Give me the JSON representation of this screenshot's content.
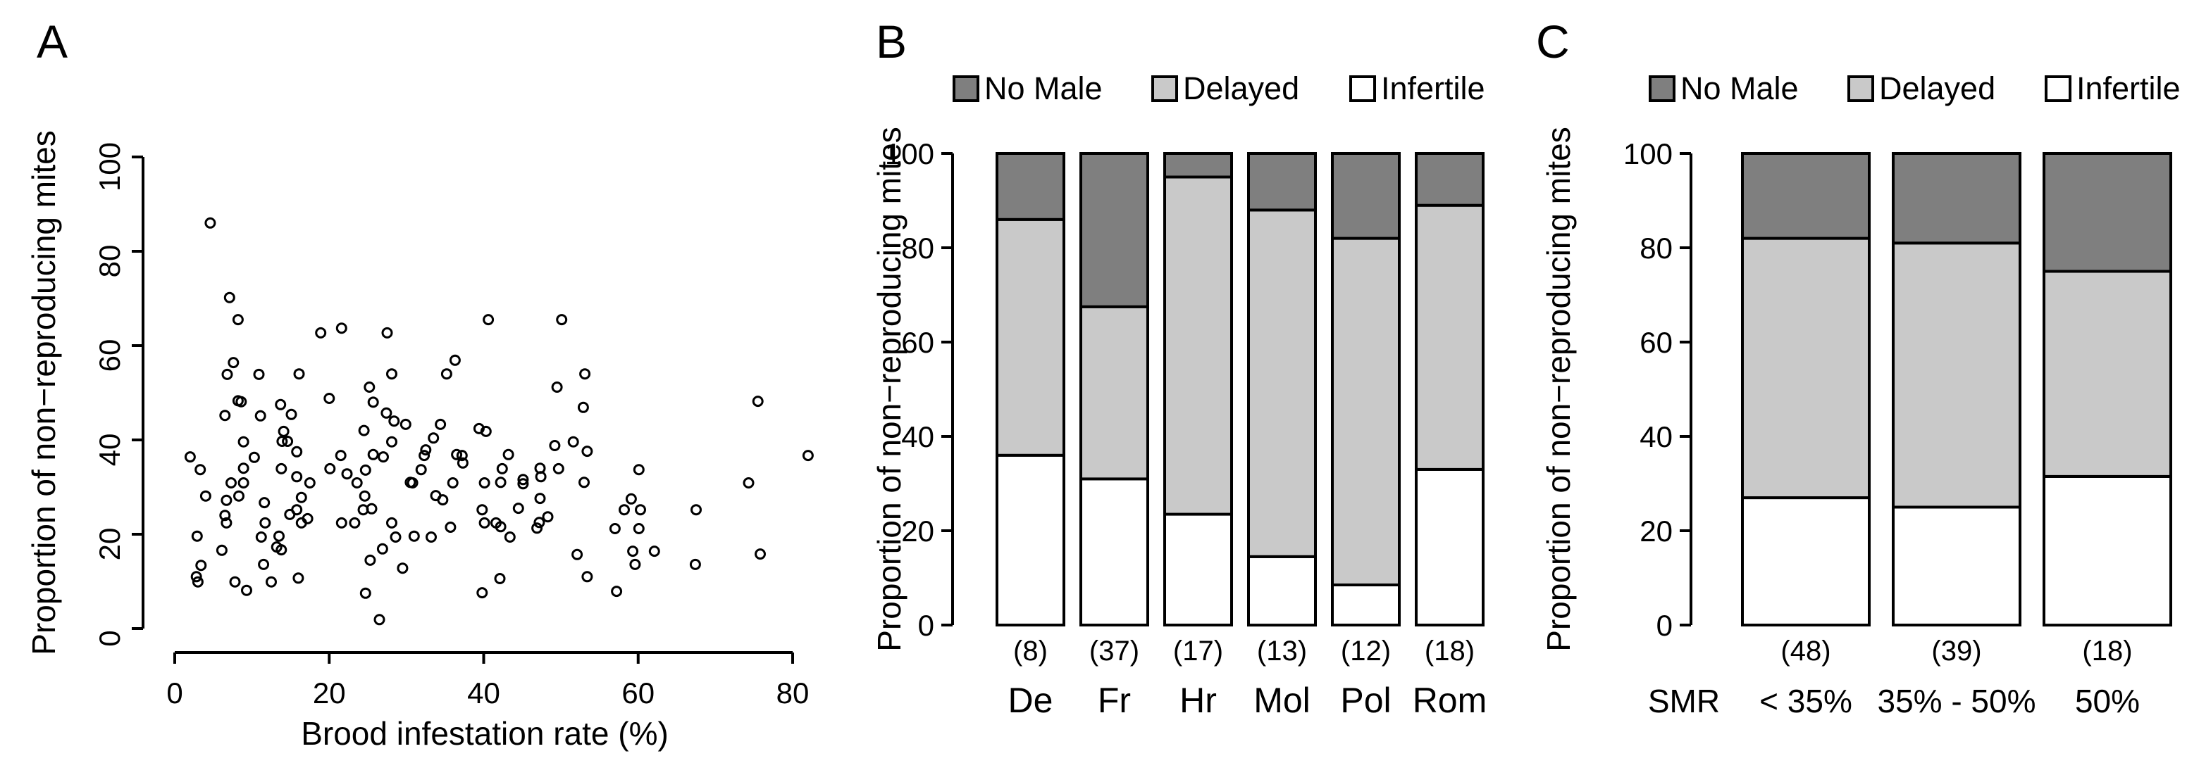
{
  "panels": {
    "a": {
      "letter": "A",
      "y_label": "Proportion of non−reproducing mites",
      "x_label": "Brood infestation rate (%)"
    },
    "b": {
      "letter": "B",
      "y_label": "Proportion of non−reproducing mites"
    },
    "c": {
      "letter": "C",
      "y_label": "Proportion of non−reproducing mites",
      "row_label": "SMR"
    }
  },
  "legend": {
    "items": [
      {
        "label": "No Male",
        "color": "#7f7f7f"
      },
      {
        "label": "Delayed",
        "color": "#c9c9c9"
      },
      {
        "label": "Infertile",
        "color": "#ffffff"
      }
    ]
  },
  "chart_data": [
    {
      "type": "scatter",
      "panel": "A",
      "title": "",
      "xlabel": "Brood infestation rate (%)",
      "ylabel": "Proportion of non−reproducing mites",
      "xlim": [
        0,
        80
      ],
      "ylim": [
        0,
        100
      ],
      "x_ticks": [
        0,
        20,
        40,
        60,
        80
      ],
      "y_ticks": [
        0,
        20,
        40,
        60,
        80,
        100
      ],
      "grid": false,
      "marker": "open-circle",
      "points": [
        [
          4.6,
          86
        ],
        [
          7.1,
          70.2
        ],
        [
          8.2,
          65.5
        ],
        [
          18.9,
          62.7
        ],
        [
          21.6,
          63.7
        ],
        [
          27.5,
          62.7
        ],
        [
          7.6,
          56.4
        ],
        [
          6.8,
          53.9
        ],
        [
          10.9,
          53.9
        ],
        [
          16.1,
          54
        ],
        [
          25.2,
          51.2
        ],
        [
          40.6,
          65.5
        ],
        [
          50.1,
          65.5
        ],
        [
          28.1,
          54
        ],
        [
          36.3,
          56.9
        ],
        [
          35.2,
          54
        ],
        [
          49.5,
          51.2
        ],
        [
          53.1,
          54
        ],
        [
          8.2,
          48.3
        ],
        [
          8.6,
          48.1
        ],
        [
          20,
          48.8
        ],
        [
          25.7,
          48
        ],
        [
          13.7,
          47.5
        ],
        [
          6.5,
          45.2
        ],
        [
          11.1,
          45.1
        ],
        [
          15.1,
          45.4
        ],
        [
          27.4,
          45.7
        ],
        [
          14.1,
          41.8
        ],
        [
          24.5,
          42
        ],
        [
          13.9,
          39.7
        ],
        [
          14.6,
          39.7
        ],
        [
          8.9,
          39.6
        ],
        [
          15.8,
          37.5
        ],
        [
          21.5,
          36.7
        ],
        [
          2,
          36.4
        ],
        [
          10.3,
          36.3
        ],
        [
          25.7,
          36.9
        ],
        [
          27,
          36.4
        ],
        [
          3.3,
          33.7
        ],
        [
          8.9,
          34
        ],
        [
          13.8,
          33.9
        ],
        [
          20.1,
          33.9
        ],
        [
          22.3,
          32.8
        ],
        [
          24.7,
          33.6
        ],
        [
          15.8,
          32.2
        ],
        [
          7.3,
          30.9
        ],
        [
          8.9,
          30.9
        ],
        [
          17.5,
          30.9
        ],
        [
          23.6,
          30.9
        ],
        [
          4,
          28.1
        ],
        [
          8.3,
          28.1
        ],
        [
          6.7,
          27.2
        ],
        [
          24.6,
          28.1
        ],
        [
          11.6,
          26.7
        ],
        [
          16.4,
          27.8
        ],
        [
          15.8,
          25.2
        ],
        [
          14.9,
          24.2
        ],
        [
          24.4,
          25.2
        ],
        [
          25.5,
          25.4
        ],
        [
          17.2,
          23.3
        ],
        [
          6.5,
          24
        ],
        [
          6.7,
          22.4
        ],
        [
          16.4,
          22.4
        ],
        [
          21.6,
          22.4
        ],
        [
          23.3,
          22.4
        ],
        [
          11.7,
          22.4
        ],
        [
          2.9,
          19.6
        ],
        [
          11.2,
          19.4
        ],
        [
          13.5,
          19.6
        ],
        [
          13.2,
          17.3
        ],
        [
          13.8,
          16.7
        ],
        [
          6.1,
          16.6
        ],
        [
          3.4,
          13.4
        ],
        [
          11.5,
          13.6
        ],
        [
          2.8,
          11
        ],
        [
          3,
          9.9
        ],
        [
          7.8,
          9.9
        ],
        [
          12.5,
          9.9
        ],
        [
          16,
          10.7
        ],
        [
          9.3,
          8.1
        ],
        [
          24.7,
          7.5
        ],
        [
          26.5,
          1.9
        ],
        [
          25.3,
          14.5
        ],
        [
          26.9,
          16.9
        ],
        [
          52.9,
          46.9
        ],
        [
          28.4,
          44
        ],
        [
          29.9,
          43.3
        ],
        [
          34.4,
          43.3
        ],
        [
          33.5,
          40.4
        ],
        [
          39.4,
          42.4
        ],
        [
          40.3,
          41.8
        ],
        [
          28.1,
          39.6
        ],
        [
          32.5,
          37.9
        ],
        [
          32.3,
          36.7
        ],
        [
          36.5,
          36.9
        ],
        [
          37.2,
          36.7
        ],
        [
          37.3,
          35.1
        ],
        [
          49.2,
          38.8
        ],
        [
          51.6,
          39.6
        ],
        [
          53.4,
          37.6
        ],
        [
          43.2,
          36.9
        ],
        [
          31.9,
          33.7
        ],
        [
          42.4,
          33.9
        ],
        [
          47.3,
          34
        ],
        [
          47.4,
          32.2
        ],
        [
          49.7,
          33.9
        ],
        [
          30.5,
          31
        ],
        [
          30.8,
          30.9
        ],
        [
          36,
          30.9
        ],
        [
          40.1,
          30.9
        ],
        [
          42.2,
          31
        ],
        [
          45.1,
          31.6
        ],
        [
          45.1,
          30.7
        ],
        [
          53,
          31
        ],
        [
          33.8,
          28.2
        ],
        [
          34.7,
          27.3
        ],
        [
          47.3,
          27.6
        ],
        [
          39.8,
          25.2
        ],
        [
          44.5,
          25.5
        ],
        [
          48.3,
          23.7
        ],
        [
          40.1,
          22.4
        ],
        [
          41.6,
          22.4
        ],
        [
          42.2,
          21.6
        ],
        [
          46.9,
          21.3
        ],
        [
          47.2,
          22.5
        ],
        [
          28.1,
          22.4
        ],
        [
          35.7,
          21.5
        ],
        [
          28.6,
          19.4
        ],
        [
          31,
          19.6
        ],
        [
          33.2,
          19.4
        ],
        [
          43.4,
          19.4
        ],
        [
          52.1,
          15.7
        ],
        [
          29.5,
          12.8
        ],
        [
          42.1,
          10.6
        ],
        [
          39.8,
          7.6
        ],
        [
          53.4,
          11
        ],
        [
          75.5,
          48.2
        ],
        [
          82,
          36.7
        ],
        [
          60.1,
          33.7
        ],
        [
          74.3,
          30.9
        ],
        [
          59.1,
          27.5
        ],
        [
          58.2,
          25.2
        ],
        [
          60.3,
          25.2
        ],
        [
          67.5,
          25.2
        ],
        [
          57,
          21.2
        ],
        [
          60.1,
          21.2
        ],
        [
          59.3,
          16.4
        ],
        [
          62.1,
          16.4
        ],
        [
          59.6,
          13.6
        ],
        [
          67.4,
          13.6
        ],
        [
          75.8,
          15.8
        ],
        [
          57.2,
          7.9
        ]
      ]
    },
    {
      "type": "bar",
      "panel": "B",
      "stacked": true,
      "ylabel": "Proportion of non−reproducing mites",
      "ylim": [
        0,
        100
      ],
      "y_ticks": [
        0,
        20,
        40,
        60,
        80,
        100
      ],
      "legend_position": "top",
      "categories": [
        "De",
        "Fr",
        "Hr",
        "Mol",
        "Pol",
        "Rom"
      ],
      "counts": [
        "(8)",
        "(37)",
        "(17)",
        "(13)",
        "(12)",
        "(18)"
      ],
      "series": [
        {
          "name": "Infertile",
          "color": "#ffffff",
          "values": [
            36,
            31,
            23.5,
            14.5,
            8.5,
            33
          ]
        },
        {
          "name": "Delayed",
          "color": "#c9c9c9",
          "values": [
            50,
            36.5,
            71.5,
            73.5,
            73.5,
            56
          ]
        },
        {
          "name": "No Male",
          "color": "#7f7f7f",
          "values": [
            14,
            32.5,
            5,
            12,
            18,
            11
          ]
        }
      ]
    },
    {
      "type": "bar",
      "panel": "C",
      "stacked": true,
      "ylabel": "Proportion of non−reproducing mites",
      "ylim": [
        0,
        100
      ],
      "y_ticks": [
        0,
        20,
        40,
        60,
        80,
        100
      ],
      "legend_position": "top",
      "row_label": "SMR",
      "categories": [
        "< 35%",
        "35% - 50%",
        "50%"
      ],
      "counts": [
        "(48)",
        "(39)",
        "(18)"
      ],
      "series": [
        {
          "name": "Infertile",
          "color": "#ffffff",
          "values": [
            27,
            25,
            31.5
          ]
        },
        {
          "name": "Delayed",
          "color": "#c9c9c9",
          "values": [
            55,
            56,
            43.5
          ]
        },
        {
          "name": "No Male",
          "color": "#7f7f7f",
          "values": [
            18,
            19,
            25
          ]
        }
      ]
    }
  ]
}
